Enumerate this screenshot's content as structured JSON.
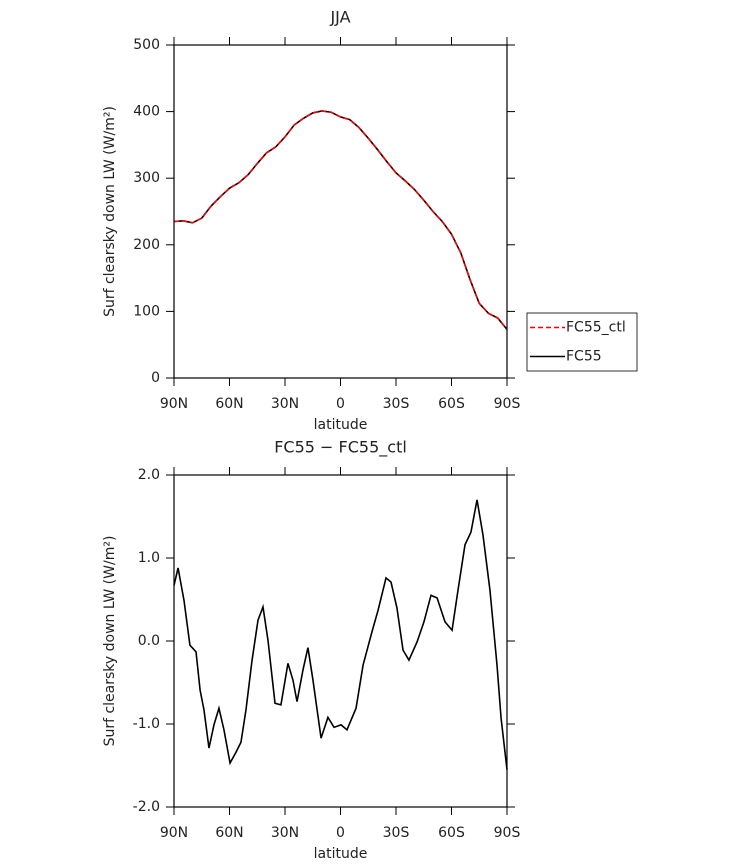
{
  "chart_data": [
    {
      "type": "line",
      "title": "JJA",
      "xlabel": "latitude",
      "ylabel": "Surf clearsky down LW (W/m²)",
      "x": [
        90,
        85,
        80,
        75,
        70,
        65,
        60,
        55,
        50,
        45,
        40,
        35,
        30,
        25,
        20,
        15,
        10,
        5,
        0,
        -5,
        -10,
        -15,
        -20,
        -25,
        -30,
        -35,
        -40,
        -45,
        -50,
        -55,
        -60,
        -65,
        -70,
        -75,
        -80,
        -85,
        -90
      ],
      "series": [
        {
          "name": "FC55_ctl",
          "color": "#ff0000",
          "linestyle": "dashed",
          "values": [
            235,
            236,
            233,
            240,
            258,
            272,
            285,
            293,
            305,
            322,
            338,
            347,
            362,
            380,
            390,
            398,
            401,
            399,
            392,
            388,
            376,
            360,
            343,
            325,
            308,
            296,
            283,
            267,
            250,
            235,
            216,
            188,
            148,
            112,
            97,
            90,
            73
          ]
        },
        {
          "name": "FC55",
          "color": "#000000",
          "linestyle": "solid",
          "values": [
            235,
            236,
            233,
            240,
            258,
            272,
            285,
            293,
            305,
            322,
            338,
            347,
            362,
            380,
            390,
            398,
            401,
            399,
            392,
            388,
            376,
            360,
            343,
            325,
            308,
            296,
            283,
            267,
            250,
            235,
            216,
            188,
            148,
            112,
            97,
            90,
            73
          ]
        }
      ],
      "xlim": [
        90,
        -90
      ],
      "xticks": [
        {
          "value": 90,
          "label": "90N"
        },
        {
          "value": 60,
          "label": "60N"
        },
        {
          "value": 30,
          "label": "30N"
        },
        0,
        {
          "value": -30,
          "label": "30S"
        },
        {
          "value": -60,
          "label": "60S"
        },
        {
          "value": -90,
          "label": "90S"
        }
      ],
      "ylim": [
        0,
        500
      ],
      "yticks": [
        0,
        100,
        200,
        300,
        400,
        500
      ],
      "legend": "right"
    },
    {
      "type": "line",
      "title": "FC55 − FC55_ctl",
      "xlabel": "latitude",
      "ylabel": "Surf clearsky down LW (W/m²)",
      "x": [
        90,
        87.8,
        84.6,
        81.4,
        78.1,
        75.9,
        73.8,
        71.1,
        68.4,
        65.7,
        63.0,
        59.7,
        56.5,
        53.8,
        51.1,
        47.8,
        44.6,
        41.9,
        39.2,
        35.4,
        32.2,
        28.4,
        25.7,
        23.5,
        20.3,
        17.6,
        14.9,
        10.5,
        6.8,
        3.5,
        -0.3,
        -3.5,
        -8.4,
        -12.2,
        -17.0,
        -20.3,
        -24.6,
        -27.3,
        -30.5,
        -33.8,
        -37.0,
        -41.4,
        -45.1,
        -48.9,
        -52.2,
        -56.5,
        -60.3,
        -63.5,
        -67.3,
        -70.5,
        -73.8,
        -77.0,
        -80.8,
        -84.6,
        -86.8,
        -90
      ],
      "series": [
        {
          "color": "#000000",
          "linestyle": "solid",
          "values": [
            0.67,
            0.88,
            0.49,
            -0.05,
            -0.13,
            -0.59,
            -0.83,
            -1.29,
            -1.01,
            -0.81,
            -1.07,
            -1.47,
            -1.34,
            -1.22,
            -0.83,
            -0.23,
            0.25,
            0.41,
            0.01,
            -0.75,
            -0.77,
            -0.27,
            -0.47,
            -0.73,
            -0.35,
            -0.08,
            -0.47,
            -1.17,
            -0.92,
            -1.04,
            -1.01,
            -1.07,
            -0.81,
            -0.29,
            0.11,
            0.37,
            0.76,
            0.71,
            0.4,
            -0.11,
            -0.23,
            -0.01,
            0.23,
            0.55,
            0.52,
            0.23,
            0.13,
            0.61,
            1.16,
            1.31,
            1.7,
            1.28,
            0.61,
            -0.29,
            -0.93,
            -1.55
          ]
        }
      ],
      "xlim": [
        90,
        -90
      ],
      "xticks": [
        {
          "value": 90,
          "label": "90N"
        },
        {
          "value": 60,
          "label": "60N"
        },
        {
          "value": 30,
          "label": "30N"
        },
        0,
        {
          "value": -30,
          "label": "30S"
        },
        {
          "value": -60,
          "label": "60S"
        },
        {
          "value": -90,
          "label": "90S"
        }
      ],
      "ylim": [
        -2,
        2
      ],
      "yticks": [
        {
          "value": 2,
          "label": "2.0"
        },
        {
          "value": 1,
          "label": "1.0"
        },
        {
          "value": 0,
          "label": "0.0"
        },
        {
          "value": -1,
          "label": "-1.0"
        },
        {
          "value": -2,
          "label": "-2.0"
        }
      ]
    }
  ]
}
